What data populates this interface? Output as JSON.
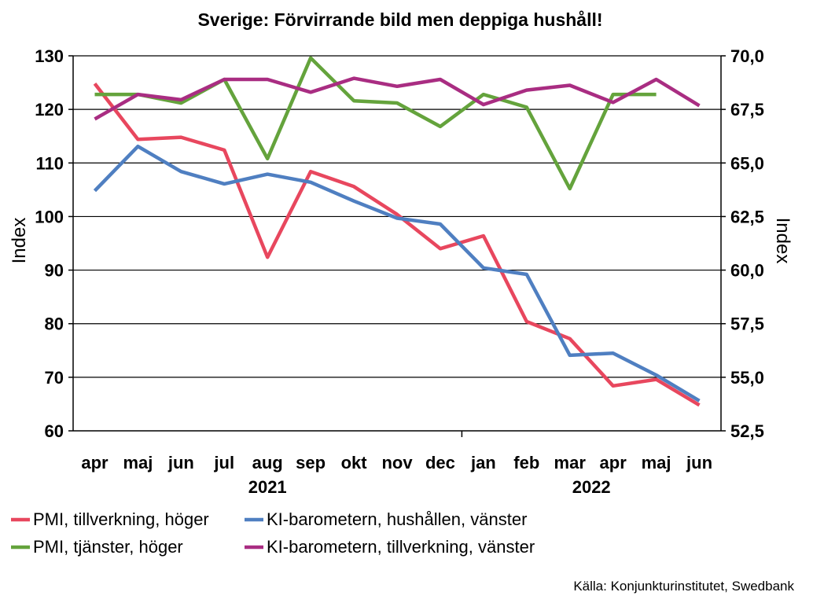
{
  "chart_data": {
    "type": "line",
    "title": "Sverige: Förvirrande bild men deppiga hushåll!",
    "ylabel_left": "Index",
    "ylabel_right": "Index",
    "categories": [
      "apr",
      "maj",
      "jun",
      "jul",
      "aug",
      "sep",
      "okt",
      "nov",
      "dec",
      "jan",
      "feb",
      "mar",
      "apr",
      "maj",
      "jun"
    ],
    "year_labels": [
      {
        "label": "2021",
        "from": 0,
        "to": 8
      },
      {
        "label": "2022",
        "from": 9,
        "to": 14
      }
    ],
    "ylim_left": [
      60,
      130
    ],
    "yticks_left": [
      60,
      70,
      80,
      90,
      100,
      110,
      120,
      130
    ],
    "ytick_labels_left": [
      "60",
      "70",
      "80",
      "90",
      "100",
      "110",
      "120",
      "130"
    ],
    "ylim_right": [
      52.5,
      70.0
    ],
    "yticks_right": [
      52.5,
      55.0,
      57.5,
      60.0,
      62.5,
      65.0,
      67.5,
      70.0
    ],
    "ytick_labels_right": [
      "52,5",
      "55,0",
      "57,5",
      "60,0",
      "62,5",
      "65,0",
      "67,5",
      "70,0"
    ],
    "grid": "horizontal",
    "legend_position": "bottom",
    "series": [
      {
        "name": "PMI, tillverkning, höger",
        "axis": "right",
        "color": "#e8475e",
        "values": [
          68.7,
          66.1,
          66.2,
          65.6,
          60.6,
          64.6,
          63.9,
          62.6,
          61.0,
          61.6,
          57.6,
          56.8,
          54.6,
          54.9,
          53.7
        ]
      },
      {
        "name": "KI-barometern, hushållen, vänster",
        "axis": "left",
        "color": "#4f7fc1",
        "values": [
          104.8,
          113.1,
          108.4,
          106.1,
          107.9,
          106.4,
          102.9,
          99.7,
          98.6,
          90.4,
          89.2,
          74.1,
          74.5,
          70.4,
          65.6
        ]
      },
      {
        "name": "PMI, tjänster, höger",
        "axis": "right",
        "color": "#64a33c",
        "values": [
          68.2,
          68.2,
          67.8,
          68.9,
          65.2,
          69.9,
          67.9,
          67.8,
          66.7,
          68.2,
          67.6,
          63.8,
          68.2,
          68.2,
          null
        ]
      },
      {
        "name": "KI-barometern, tillverkning, vänster",
        "axis": "left",
        "color": "#a92d82",
        "values": [
          118.2,
          122.8,
          121.8,
          125.6,
          125.6,
          123.2,
          125.8,
          124.3,
          125.6,
          120.9,
          123.6,
          124.5,
          121.3,
          125.6,
          120.7
        ]
      }
    ],
    "source": "Källa: Konjunkturinstitutet, Swedbank"
  }
}
